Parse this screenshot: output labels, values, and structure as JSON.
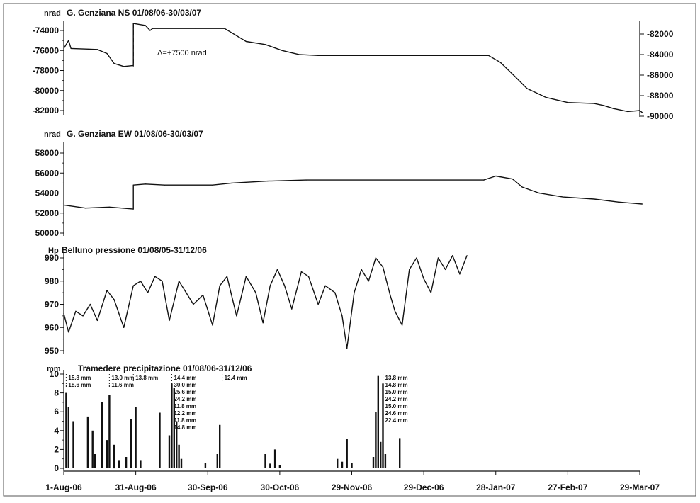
{
  "chart_data": [
    {
      "type": "line",
      "title": "G. Genziana NS 01/08/06-30/03/07",
      "ylabel": "nrad",
      "ylim": [
        -82000,
        -73500
      ],
      "yticks": [
        "-74000",
        "-76000",
        "-78000",
        "-80000",
        "-82000"
      ],
      "ylim_right": [
        -90000,
        -81000
      ],
      "yticks_right": [
        "-82000",
        "-84000",
        "-86000",
        "-88000",
        "-90000"
      ],
      "annotation": "Δ=+7500 nrad",
      "series": [
        {
          "values": [
            {
              "x": "2006-08-01",
              "y": -75800
            },
            {
              "x": "2006-08-03",
              "y": -75000
            },
            {
              "x": "2006-08-04",
              "y": -75800
            },
            {
              "x": "2006-08-15",
              "y": -75900
            },
            {
              "x": "2006-08-19",
              "y": -76300
            },
            {
              "x": "2006-08-22",
              "y": -77300
            },
            {
              "x": "2006-08-26",
              "y": -77600
            },
            {
              "x": "2006-08-30",
              "y": -77500
            },
            {
              "x": "2006-08-30",
              "y": -73300
            },
            {
              "x": "2006-09-04",
              "y": -73500
            },
            {
              "x": "2006-09-06",
              "y": -74000
            },
            {
              "x": "2006-09-07",
              "y": -73800
            },
            {
              "x": "2006-09-25",
              "y": -73800
            },
            {
              "x": "2006-10-07",
              "y": -73800
            },
            {
              "x": "2006-10-16",
              "y": -75100
            },
            {
              "x": "2006-10-24",
              "y": -75400
            },
            {
              "x": "2006-10-31",
              "y": -76000
            },
            {
              "x": "2006-11-07",
              "y": -76400
            },
            {
              "x": "2006-11-15",
              "y": -76500
            },
            {
              "x": "2006-12-30",
              "y": -76500
            },
            {
              "x": "2007-01-25",
              "y": -76500
            },
            {
              "x": "2007-01-30",
              "y": -77200
            },
            {
              "x": "2007-02-05",
              "y": -78600
            },
            {
              "x": "2007-02-10",
              "y": -79800
            },
            {
              "x": "2007-02-18",
              "y": -80700
            },
            {
              "x": "2007-02-27",
              "y": -81200
            },
            {
              "x": "2007-03-10",
              "y": -81300
            },
            {
              "x": "2007-03-14",
              "y": -81500
            },
            {
              "x": "2007-03-18",
              "y": -81800
            },
            {
              "x": "2007-03-24",
              "y": -82100
            },
            {
              "x": "2007-03-29",
              "y": -82000
            },
            {
              "x": "2007-03-30",
              "y": -82200
            }
          ]
        }
      ]
    },
    {
      "type": "line",
      "title": "G. Genziana EW 01/08/06-30/03/07",
      "ylabel": "nrad",
      "ylim": [
        50000,
        59000
      ],
      "yticks": [
        "58000",
        "56000",
        "54000",
        "52000",
        "50000"
      ],
      "series": [
        {
          "values": [
            {
              "x": "2006-08-01",
              "y": 52800
            },
            {
              "x": "2006-08-10",
              "y": 52500
            },
            {
              "x": "2006-08-20",
              "y": 52600
            },
            {
              "x": "2006-08-30",
              "y": 52400
            },
            {
              "x": "2006-08-30",
              "y": 54800
            },
            {
              "x": "2006-09-04",
              "y": 54900
            },
            {
              "x": "2006-09-12",
              "y": 54800
            },
            {
              "x": "2006-10-02",
              "y": 54800
            },
            {
              "x": "2006-10-10",
              "y": 55000
            },
            {
              "x": "2006-10-25",
              "y": 55200
            },
            {
              "x": "2006-11-10",
              "y": 55300
            },
            {
              "x": "2007-01-23",
              "y": 55300
            },
            {
              "x": "2007-01-28",
              "y": 55700
            },
            {
              "x": "2007-02-04",
              "y": 55400
            },
            {
              "x": "2007-02-08",
              "y": 54600
            },
            {
              "x": "2007-02-15",
              "y": 54000
            },
            {
              "x": "2007-02-25",
              "y": 53600
            },
            {
              "x": "2007-03-10",
              "y": 53400
            },
            {
              "x": "2007-03-20",
              "y": 53100
            },
            {
              "x": "2007-03-30",
              "y": 52900
            }
          ]
        }
      ]
    },
    {
      "type": "line",
      "title": "Belluno pressione 01/08/05-31/12/06",
      "ylabel": "Hp",
      "ylim": [
        950,
        992
      ],
      "yticks": [
        "990",
        "980",
        "970",
        "960",
        "950"
      ],
      "series": [
        {
          "values": [
            {
              "x": "2006-08-01",
              "y": 966
            },
            {
              "x": "2006-08-03",
              "y": 958
            },
            {
              "x": "2006-08-06",
              "y": 967
            },
            {
              "x": "2006-08-09",
              "y": 965
            },
            {
              "x": "2006-08-12",
              "y": 970
            },
            {
              "x": "2006-08-15",
              "y": 963
            },
            {
              "x": "2006-08-19",
              "y": 976
            },
            {
              "x": "2006-08-22",
              "y": 972
            },
            {
              "x": "2006-08-26",
              "y": 960
            },
            {
              "x": "2006-08-30",
              "y": 978
            },
            {
              "x": "2006-09-02",
              "y": 980
            },
            {
              "x": "2006-09-05",
              "y": 975
            },
            {
              "x": "2006-09-08",
              "y": 982
            },
            {
              "x": "2006-09-11",
              "y": 980
            },
            {
              "x": "2006-09-14",
              "y": 963
            },
            {
              "x": "2006-09-18",
              "y": 980
            },
            {
              "x": "2006-09-21",
              "y": 975
            },
            {
              "x": "2006-09-24",
              "y": 970
            },
            {
              "x": "2006-09-28",
              "y": 974
            },
            {
              "x": "2006-10-02",
              "y": 961
            },
            {
              "x": "2006-10-05",
              "y": 978
            },
            {
              "x": "2006-10-08",
              "y": 982
            },
            {
              "x": "2006-10-12",
              "y": 965
            },
            {
              "x": "2006-10-16",
              "y": 982
            },
            {
              "x": "2006-10-20",
              "y": 975
            },
            {
              "x": "2006-10-23",
              "y": 962
            },
            {
              "x": "2006-10-26",
              "y": 978
            },
            {
              "x": "2006-10-29",
              "y": 985
            },
            {
              "x": "2006-11-01",
              "y": 978
            },
            {
              "x": "2006-11-04",
              "y": 968
            },
            {
              "x": "2006-11-08",
              "y": 984
            },
            {
              "x": "2006-11-11",
              "y": 982
            },
            {
              "x": "2006-11-15",
              "y": 970
            },
            {
              "x": "2006-11-18",
              "y": 978
            },
            {
              "x": "2006-11-22",
              "y": 975
            },
            {
              "x": "2006-11-25",
              "y": 965
            },
            {
              "x": "2006-11-27",
              "y": 951
            },
            {
              "x": "2006-11-30",
              "y": 975
            },
            {
              "x": "2006-12-03",
              "y": 985
            },
            {
              "x": "2006-12-06",
              "y": 980
            },
            {
              "x": "2006-12-09",
              "y": 990
            },
            {
              "x": "2006-12-12",
              "y": 986
            },
            {
              "x": "2006-12-15",
              "y": 974
            },
            {
              "x": "2006-12-17",
              "y": 967
            },
            {
              "x": "2006-12-20",
              "y": 961
            },
            {
              "x": "2006-12-23",
              "y": 985
            },
            {
              "x": "2006-12-26",
              "y": 990
            },
            {
              "x": "2006-12-29",
              "y": 981
            },
            {
              "x": "2007-01-01",
              "y": 975
            },
            {
              "x": "2007-01-04",
              "y": 990
            },
            {
              "x": "2007-01-07",
              "y": 985
            },
            {
              "x": "2007-01-10",
              "y": 991
            },
            {
              "x": "2007-01-13",
              "y": 983
            },
            {
              "x": "2007-01-16",
              "y": 991
            }
          ]
        }
      ]
    },
    {
      "type": "bar",
      "title": "Tramedere precipitazione 01/08/06-31/12/06",
      "ylabel": "mm",
      "ylim": [
        0,
        10
      ],
      "yticks": [
        "10",
        "8",
        "6",
        "4",
        "2",
        "0"
      ],
      "bars": [
        {
          "x": "2006-08-02",
          "y": 8.0
        },
        {
          "x": "2006-08-03",
          "y": 6.5
        },
        {
          "x": "2006-08-05",
          "y": 5.0
        },
        {
          "x": "2006-08-11",
          "y": 5.5
        },
        {
          "x": "2006-08-13",
          "y": 4.0
        },
        {
          "x": "2006-08-14",
          "y": 1.5
        },
        {
          "x": "2006-08-17",
          "y": 7.0
        },
        {
          "x": "2006-08-19",
          "y": 3.0
        },
        {
          "x": "2006-08-20",
          "y": 7.8
        },
        {
          "x": "2006-08-22",
          "y": 2.5
        },
        {
          "x": "2006-08-24",
          "y": 0.8
        },
        {
          "x": "2006-08-27",
          "y": 1.2
        },
        {
          "x": "2006-08-29",
          "y": 5.2
        },
        {
          "x": "2006-08-31",
          "y": 6.5
        },
        {
          "x": "2006-09-02",
          "y": 0.8
        },
        {
          "x": "2006-09-10",
          "y": 5.9
        },
        {
          "x": "2006-09-14",
          "y": 3.5
        },
        {
          "x": "2006-09-15",
          "y": 9.0
        },
        {
          "x": "2006-09-16",
          "y": 8.5
        },
        {
          "x": "2006-09-17",
          "y": 5.0
        },
        {
          "x": "2006-09-18",
          "y": 2.5
        },
        {
          "x": "2006-09-19",
          "y": 1.0
        },
        {
          "x": "2006-09-29",
          "y": 0.6
        },
        {
          "x": "2006-10-04",
          "y": 1.5
        },
        {
          "x": "2006-10-05",
          "y": 4.6
        },
        {
          "x": "2006-10-24",
          "y": 1.5
        },
        {
          "x": "2006-10-26",
          "y": 0.5
        },
        {
          "x": "2006-10-28",
          "y": 2.0
        },
        {
          "x": "2006-10-30",
          "y": 0.3
        },
        {
          "x": "2006-11-23",
          "y": 1.0
        },
        {
          "x": "2006-11-25",
          "y": 0.7
        },
        {
          "x": "2006-11-27",
          "y": 3.1
        },
        {
          "x": "2006-11-29",
          "y": 0.6
        },
        {
          "x": "2006-12-08",
          "y": 1.2
        },
        {
          "x": "2006-12-09",
          "y": 6.0
        },
        {
          "x": "2006-12-10",
          "y": 9.8
        },
        {
          "x": "2006-12-11",
          "y": 2.8
        },
        {
          "x": "2006-12-12",
          "y": 9.0
        },
        {
          "x": "2006-12-13",
          "y": 1.5
        },
        {
          "x": "2006-12-19",
          "y": 3.2
        }
      ],
      "annotations": [
        {
          "x": "2006-08-02",
          "lines": [
            "15.8 mm",
            "18.6 mm"
          ]
        },
        {
          "x": "2006-08-20",
          "lines": [
            "13.0 mm",
            "11.6 mm"
          ]
        },
        {
          "x": "2006-08-30",
          "lines": [
            "13.8 mm"
          ]
        },
        {
          "x": "2006-09-15",
          "lines": [
            "14.4 mm",
            "30.0 mm",
            "25.6 mm",
            "24.2 mm",
            "11.8 mm",
            "12.2 mm",
            "11.8 mm",
            "14.8 mm"
          ]
        },
        {
          "x": "2006-10-06",
          "lines": [
            "12.4 mm"
          ]
        },
        {
          "x": "2006-12-12",
          "lines": [
            "13.8 mm",
            "14.8 mm",
            "15.0 mm",
            "24.2 mm",
            "15.0 mm",
            "24.6 mm",
            "22.4 mm"
          ]
        }
      ]
    }
  ],
  "x_axis": {
    "ticks": [
      {
        "date": "2006-08-01",
        "label": "1-Aug-06"
      },
      {
        "date": "2006-08-31",
        "label": "31-Aug-06"
      },
      {
        "date": "2006-09-30",
        "label": "30-Sep-06"
      },
      {
        "date": "2006-10-30",
        "label": "30-Oct-06"
      },
      {
        "date": "2006-11-29",
        "label": "29-Nov-06"
      },
      {
        "date": "2006-12-29",
        "label": "29-Dec-06"
      },
      {
        "date": "2007-01-28",
        "label": "28-Jan-07"
      },
      {
        "date": "2007-02-27",
        "label": "27-Feb-07"
      },
      {
        "date": "2007-03-29",
        "label": "29-Mar-07"
      }
    ]
  }
}
